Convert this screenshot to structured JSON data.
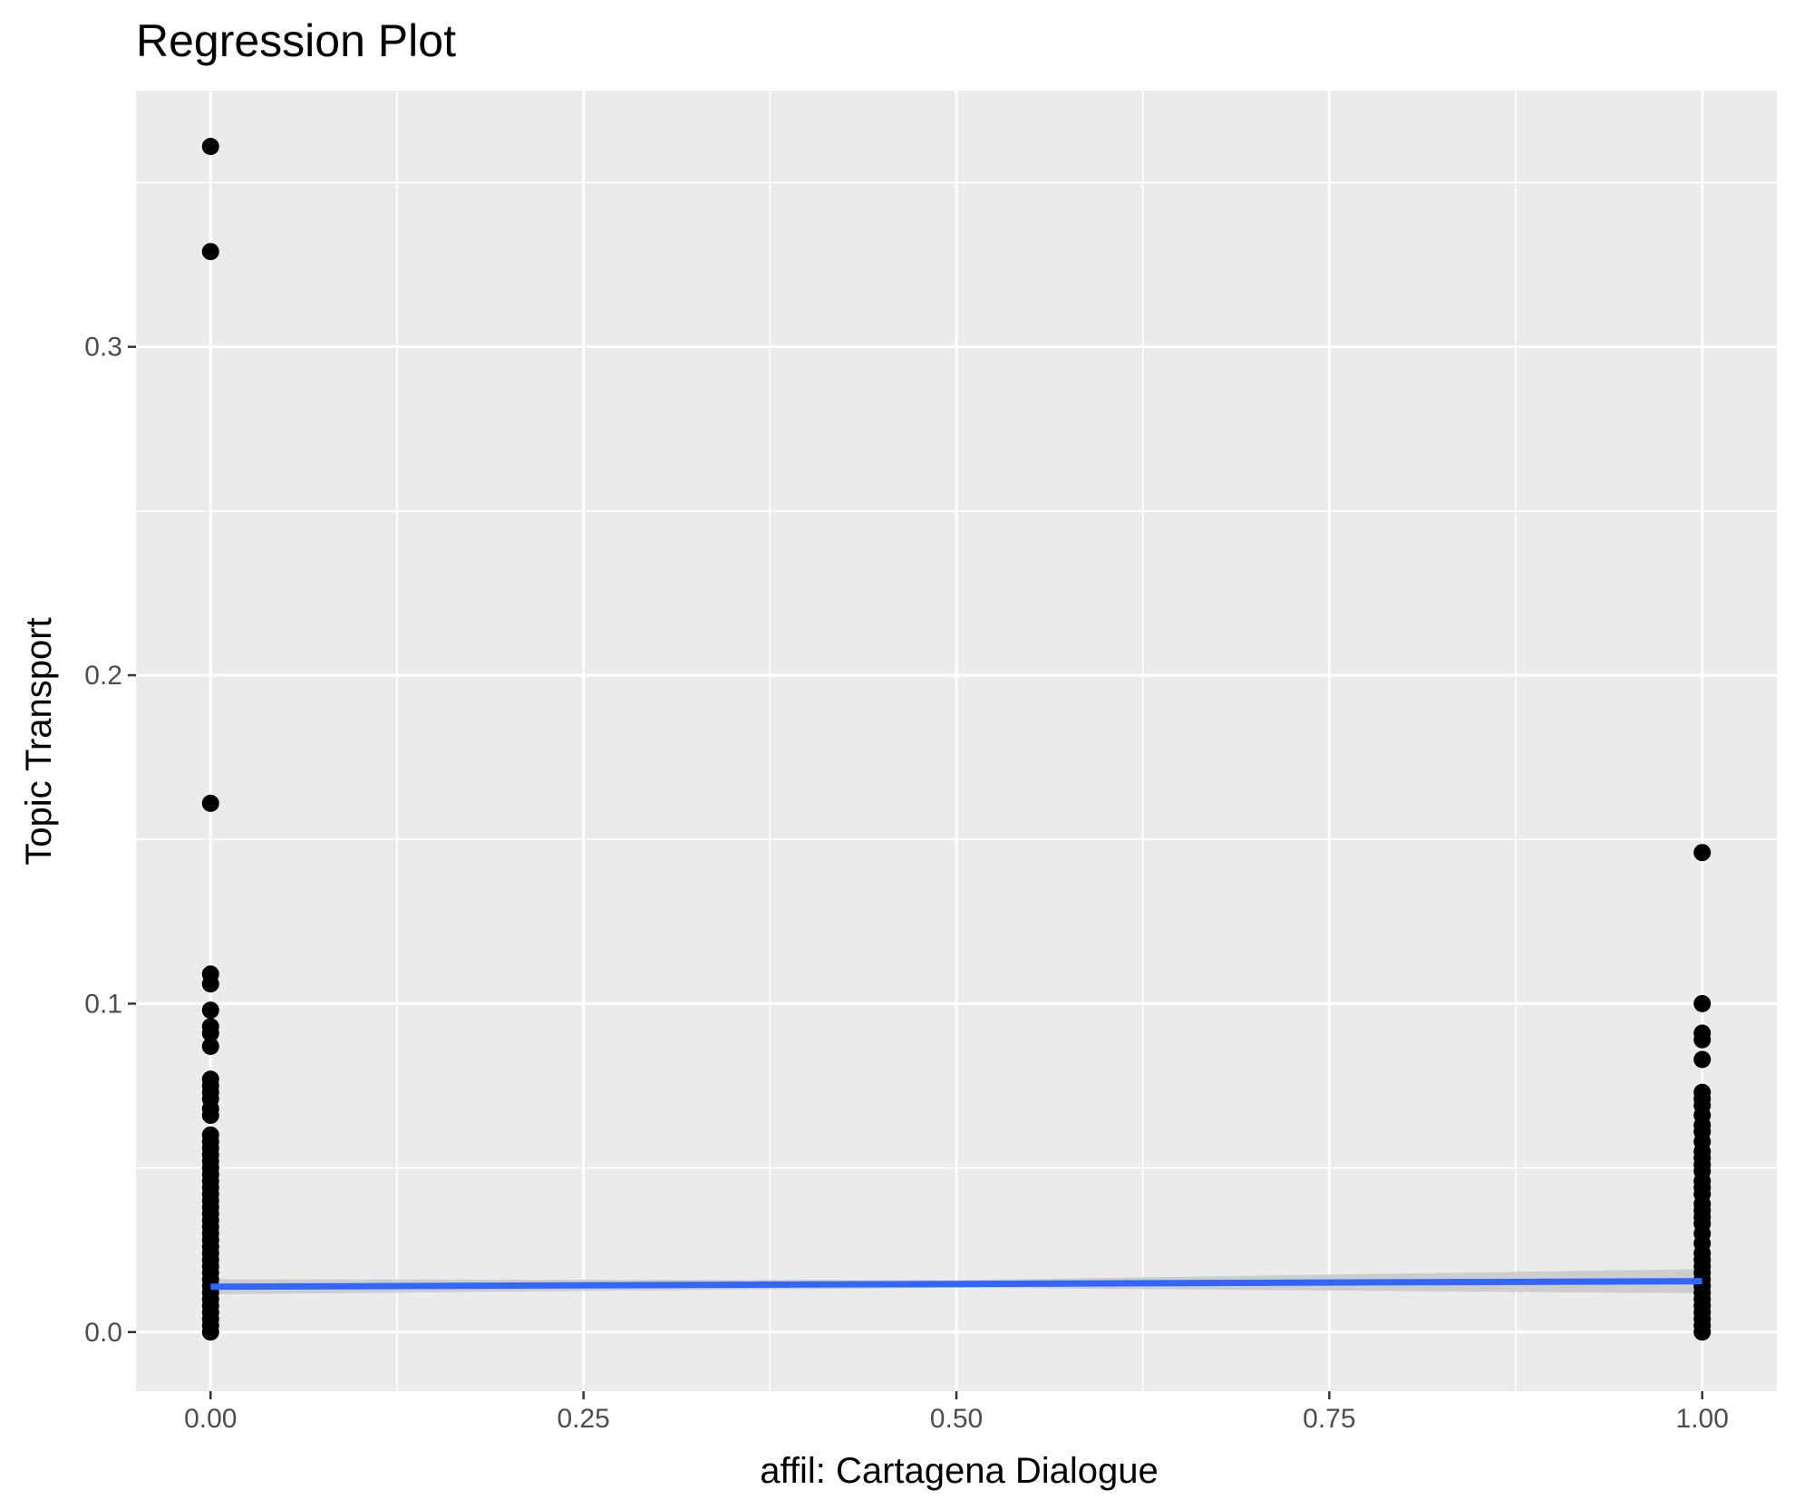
{
  "chart_data": {
    "type": "scatter",
    "title": "Regression Plot",
    "xlabel": "affil: Cartagena Dialogue",
    "ylabel": "Topic Transport",
    "xlim": [
      -0.05,
      1.05
    ],
    "ylim": [
      -0.018,
      0.378
    ],
    "x_ticks": [
      0.0,
      0.25,
      0.5,
      0.75,
      1.0
    ],
    "x_tick_labels": [
      "0.00",
      "0.25",
      "0.50",
      "0.75",
      "1.00"
    ],
    "y_ticks": [
      0.0,
      0.1,
      0.2,
      0.3
    ],
    "y_tick_labels": [
      "0.0",
      "0.1",
      "0.2",
      "0.3"
    ],
    "grid": true,
    "legend": "none",
    "colors": {
      "panel_background": "#ebebeb",
      "grid": "#ffffff",
      "points": "#000000",
      "fit_line": "#3366ff",
      "confidence_band": "#c8c8c8"
    },
    "points": [
      [
        0,
        0.361
      ],
      [
        0,
        0.329
      ],
      [
        0,
        0.161
      ],
      [
        0,
        0.109
      ],
      [
        0,
        0.106
      ],
      [
        0,
        0.098
      ],
      [
        0,
        0.093
      ],
      [
        0,
        0.091
      ],
      [
        0,
        0.087
      ],
      [
        0,
        0.077
      ],
      [
        0,
        0.075
      ],
      [
        0,
        0.073
      ],
      [
        0,
        0.071
      ],
      [
        0,
        0.068
      ],
      [
        0,
        0.066
      ],
      [
        0,
        0.06
      ],
      [
        0,
        0.058
      ],
      [
        0,
        0.056
      ],
      [
        0,
        0.054
      ],
      [
        0,
        0.052
      ],
      [
        0,
        0.05
      ],
      [
        0,
        0.048
      ],
      [
        0,
        0.046
      ],
      [
        0,
        0.044
      ],
      [
        0,
        0.042
      ],
      [
        0,
        0.04
      ],
      [
        0,
        0.038
      ],
      [
        0,
        0.036
      ],
      [
        0,
        0.034
      ],
      [
        0,
        0.032
      ],
      [
        0,
        0.03
      ],
      [
        0,
        0.028
      ],
      [
        0,
        0.026
      ],
      [
        0,
        0.024
      ],
      [
        0,
        0.022
      ],
      [
        0,
        0.02
      ],
      [
        0,
        0.018
      ],
      [
        0,
        0.016
      ],
      [
        0,
        0.014
      ],
      [
        0,
        0.012
      ],
      [
        0,
        0.01
      ],
      [
        0,
        0.008
      ],
      [
        0,
        0.006
      ],
      [
        0,
        0.004
      ],
      [
        0,
        0.002
      ],
      [
        0,
        0.0
      ],
      [
        1,
        0.146
      ],
      [
        1,
        0.1
      ],
      [
        1,
        0.091
      ],
      [
        1,
        0.089
      ],
      [
        1,
        0.083
      ],
      [
        1,
        0.073
      ],
      [
        1,
        0.071
      ],
      [
        1,
        0.069
      ],
      [
        1,
        0.066
      ],
      [
        1,
        0.063
      ],
      [
        1,
        0.061
      ],
      [
        1,
        0.058
      ],
      [
        1,
        0.055
      ],
      [
        1,
        0.053
      ],
      [
        1,
        0.051
      ],
      [
        1,
        0.049
      ],
      [
        1,
        0.046
      ],
      [
        1,
        0.044
      ],
      [
        1,
        0.042
      ],
      [
        1,
        0.039
      ],
      [
        1,
        0.037
      ],
      [
        1,
        0.035
      ],
      [
        1,
        0.033
      ],
      [
        1,
        0.03
      ],
      [
        1,
        0.027
      ],
      [
        1,
        0.024
      ],
      [
        1,
        0.022
      ],
      [
        1,
        0.02
      ],
      [
        1,
        0.018
      ],
      [
        1,
        0.016
      ],
      [
        1,
        0.014
      ],
      [
        1,
        0.012
      ],
      [
        1,
        0.01
      ],
      [
        1,
        0.008
      ],
      [
        1,
        0.006
      ],
      [
        1,
        0.004
      ],
      [
        1,
        0.002
      ],
      [
        1,
        0.0
      ]
    ],
    "fit_line": {
      "x": [
        0,
        1
      ],
      "y": [
        0.0138,
        0.0155
      ]
    },
    "confidence_band": {
      "x": [
        0,
        0.5,
        1
      ],
      "lower": [
        0.0115,
        0.0135,
        0.0118
      ],
      "upper": [
        0.0161,
        0.0158,
        0.0192
      ]
    }
  }
}
